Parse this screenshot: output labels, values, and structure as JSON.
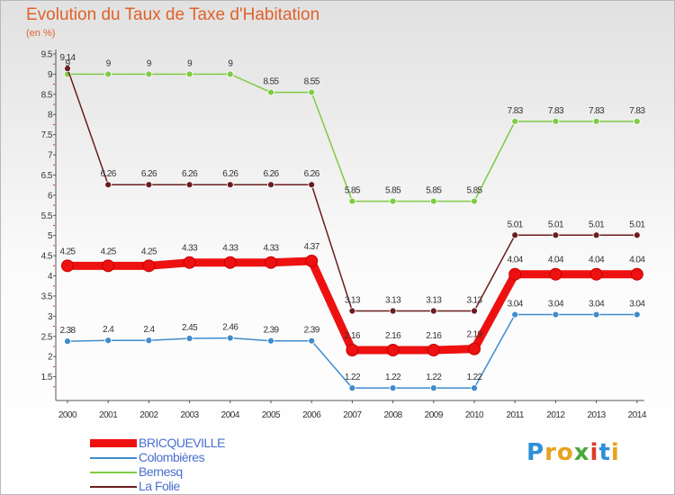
{
  "title": "Evolution du Taux de Taxe d'Habitation",
  "subtitle": "(en %)",
  "logo": {
    "text": "Proxiti",
    "letters": [
      "P",
      "r",
      "o",
      "x",
      "i",
      "t",
      "i"
    ],
    "colors": [
      "#2f8fd8",
      "#e9a21f",
      "#e9a21f",
      "#4aa83c",
      "#e03a2a",
      "#2f8fd8",
      "#e9a21f"
    ]
  },
  "chart_data": {
    "type": "line",
    "title": "Evolution du Taux de Taxe d'Habitation",
    "ylabel": "(en %)",
    "xlabel": "",
    "ylim": [
      1,
      9.5
    ],
    "yticks": [
      "1.5",
      "2",
      "2.5",
      "3",
      "3.5",
      "4",
      "4.5",
      "5",
      "5.5",
      "6",
      "6.5",
      "7",
      "7.5",
      "8",
      "8.5",
      "9",
      "9.5"
    ],
    "x": [
      "2000",
      "2001",
      "2002",
      "2003",
      "2004",
      "2005",
      "2006",
      "2007",
      "2008",
      "2009",
      "2010",
      "2011",
      "2012",
      "2013",
      "2014"
    ],
    "series": [
      {
        "name": "Bernesq",
        "color": "#7fcb45",
        "bold": false,
        "values": [
          9,
          9,
          9,
          9,
          9,
          8.55,
          8.55,
          5.85,
          5.85,
          5.85,
          5.85,
          7.83,
          7.83,
          7.83,
          7.83
        ],
        "labels": [
          "9",
          "9",
          "9",
          "9",
          "9",
          "8.55",
          "8.55",
          "5.85",
          "5.85",
          "5.85",
          "5.85",
          "7.83",
          "7.83",
          "7.83",
          "7.83"
        ]
      },
      {
        "name": "La Folie",
        "color": "#6b1d20",
        "bold": false,
        "values": [
          9.14,
          6.26,
          6.26,
          6.26,
          6.26,
          6.26,
          6.26,
          3.13,
          3.13,
          3.13,
          3.13,
          5.01,
          5.01,
          5.01,
          5.01
        ],
        "labels": [
          "9.14",
          "6.26",
          "6.26",
          "6.26",
          "6.26",
          "6.26",
          "6.26",
          "3.13",
          "3.13",
          "3.13",
          "3.13",
          "5.01",
          "5.01",
          "5.01",
          "5.01"
        ]
      },
      {
        "name": "Colombières",
        "color": "#3e8ccd",
        "bold": false,
        "values": [
          2.38,
          2.4,
          2.4,
          2.45,
          2.46,
          2.39,
          2.39,
          1.22,
          1.22,
          1.22,
          1.22,
          3.04,
          3.04,
          3.04,
          3.04
        ],
        "labels": [
          "2.38",
          "2.4",
          "2.4",
          "2.45",
          "2.46",
          "2.39",
          "2.39",
          "1.22",
          "1.22",
          "1.22",
          "1.22",
          "3.04",
          "3.04",
          "3.04",
          "3.04"
        ]
      },
      {
        "name": "BRICQUEVILLE",
        "color": "#ee1111",
        "bold": true,
        "values": [
          4.25,
          4.25,
          4.25,
          4.33,
          4.33,
          4.33,
          4.37,
          2.16,
          2.16,
          2.16,
          2.19,
          4.04,
          4.04,
          4.04,
          4.04
        ],
        "labels": [
          "4.25",
          "4.25",
          "4.25",
          "4.33",
          "4.33",
          "4.33",
          "4.37",
          "2.16",
          "2.16",
          "2.16",
          "2.19",
          "4.04",
          "4.04",
          "4.04",
          "4.04"
        ]
      }
    ],
    "legend": [
      "BRICQUEVILLE",
      "Colombières",
      "Bernesq",
      "La Folie"
    ]
  }
}
